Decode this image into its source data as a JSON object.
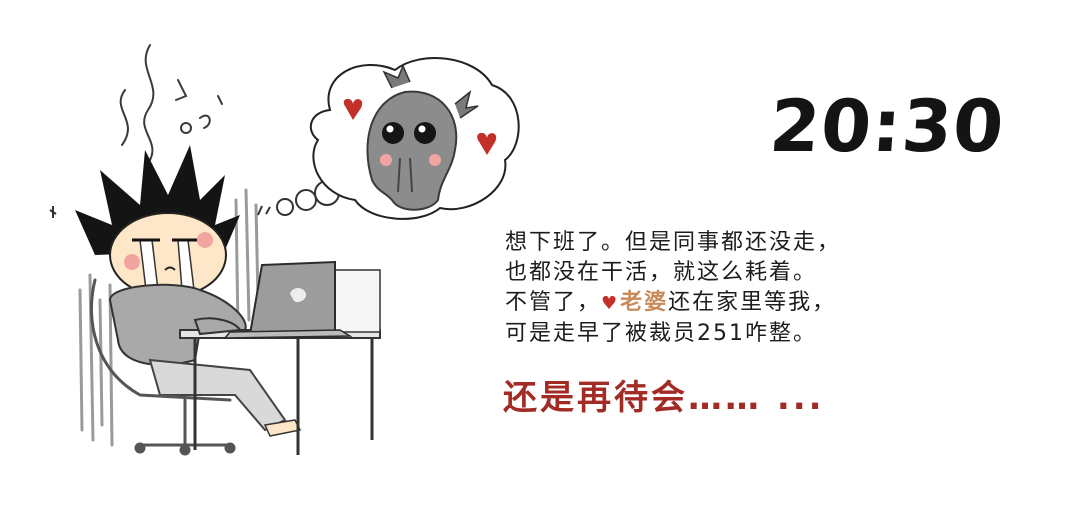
{
  "time": "20:30",
  "caption": {
    "line1": "想下班了。但是同事都还没走，",
    "line2": "也都没在干活，就这么耗着。",
    "line3_before": "不管了，",
    "line3_highlight": "老婆",
    "line3_after": "还在家里等我，",
    "line4": "可是走早了被裁员251咋整。"
  },
  "punchline": "还是再待会…… ...",
  "colors": {
    "ink": "#1d1d1d",
    "punchline": "#a32b26",
    "highlight": "#c98a5a",
    "heart": "#c3302a",
    "creature": "#8c8c8c",
    "shirt": "#a9a9a9"
  },
  "illustration": {
    "worker": "crying-office-worker",
    "thought": "grey-creature-thought-bubble"
  }
}
